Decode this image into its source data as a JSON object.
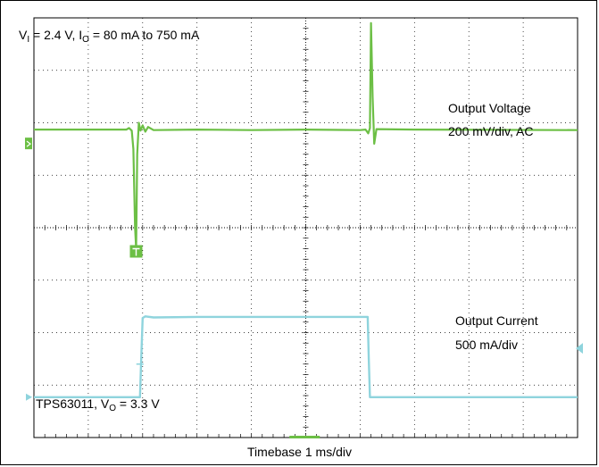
{
  "chart_data": {
    "type": "line",
    "title_parts": {
      "v": "V",
      "v_sub": "I",
      "v_rest": " = 2.4 V, I",
      "i_sub": "O",
      "i_rest": " = 80 mA to 750 mA"
    },
    "device_parts": {
      "name": "TPS63011, V",
      "v_sub": "O",
      "v_rest": " = 3.3 V"
    },
    "xlabel": "Timebase 1 ms/div",
    "xlim": [
      0,
      10
    ],
    "ylim_div": [
      0,
      8
    ],
    "grid": true,
    "series": [
      {
        "name": "Output Voltage",
        "scale": "200 mV/div, AC",
        "color": "#6cbf45",
        "points_div": [
          [
            0,
            5.87
          ],
          [
            1.7,
            5.87
          ],
          [
            1.75,
            5.9
          ],
          [
            1.8,
            5.85
          ],
          [
            1.83,
            5.5
          ],
          [
            1.86,
            4.0
          ],
          [
            1.88,
            3.6
          ],
          [
            1.9,
            5.4
          ],
          [
            1.93,
            6.0
          ],
          [
            1.96,
            5.85
          ],
          [
            2.0,
            5.95
          ],
          [
            2.05,
            5.83
          ],
          [
            2.1,
            5.92
          ],
          [
            2.2,
            5.86
          ],
          [
            3.0,
            5.87
          ],
          [
            4.0,
            5.86
          ],
          [
            5.0,
            5.87
          ],
          [
            6.0,
            5.86
          ],
          [
            6.1,
            5.87
          ],
          [
            6.15,
            5.8
          ],
          [
            6.18,
            5.9
          ],
          [
            6.2,
            7.9
          ],
          [
            6.23,
            6.5
          ],
          [
            6.26,
            5.6
          ],
          [
            6.3,
            5.88
          ],
          [
            7.0,
            5.87
          ],
          [
            10,
            5.86
          ]
        ]
      },
      {
        "name": "Output Current",
        "scale": "500 mA/div",
        "color": "#8fd4dd",
        "points_div": [
          [
            0,
            0.77
          ],
          [
            1.95,
            0.77
          ],
          [
            1.97,
            1.4
          ],
          [
            2.0,
            2.28
          ],
          [
            2.05,
            2.31
          ],
          [
            2.2,
            2.29
          ],
          [
            3.0,
            2.3
          ],
          [
            4.0,
            2.3
          ],
          [
            5.0,
            2.3
          ],
          [
            6.0,
            2.3
          ],
          [
            6.14,
            2.3
          ],
          [
            6.16,
            1.5
          ],
          [
            6.18,
            0.77
          ],
          [
            10,
            0.77
          ]
        ]
      }
    ],
    "markers": {
      "ch1_color": "#6cbf45",
      "ch2_color": "#8fd4dd",
      "trigger_color": "#6cbf45"
    }
  }
}
